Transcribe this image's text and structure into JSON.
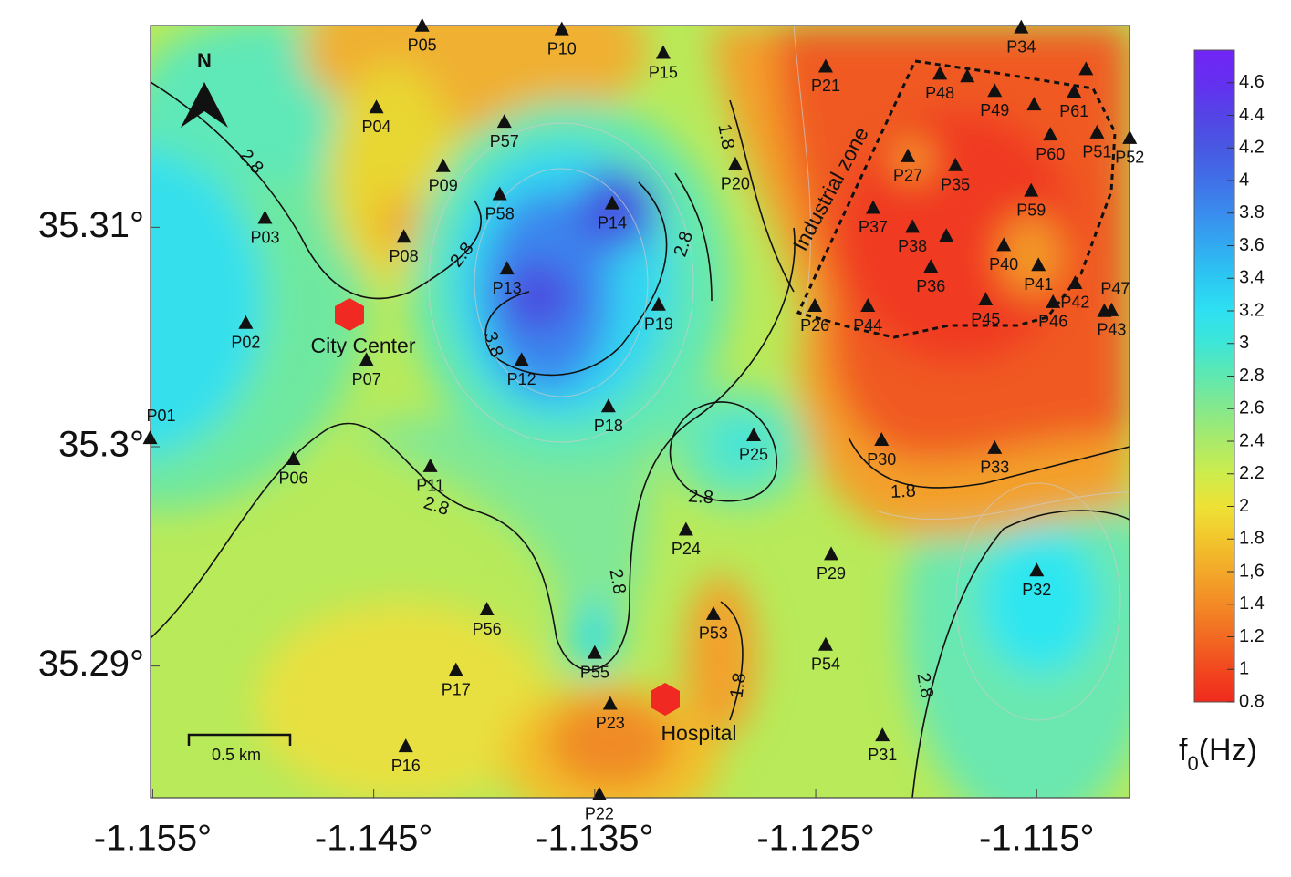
{
  "map": {
    "xlim": [
      -1.1551,
      -1.1108
    ],
    "ylim": [
      35.284,
      35.3192
    ],
    "xticks": [
      {
        "value": -1.155,
        "label": "-1.155°"
      },
      {
        "value": -1.145,
        "label": "-1.145°"
      },
      {
        "value": -1.135,
        "label": "-1.135°"
      },
      {
        "value": -1.125,
        "label": "-1.125°"
      },
      {
        "value": -1.115,
        "label": "-1.115°"
      }
    ],
    "yticks": [
      {
        "value": 35.31,
        "label": "35.31°"
      },
      {
        "value": 35.3,
        "label": "35.3°"
      },
      {
        "value": 35.29,
        "label": "35.29°"
      }
    ],
    "stations": [
      {
        "label": "P01",
        "lon": -1.15512,
        "lat": 35.30037
      },
      {
        "label": "P02",
        "lon": -1.15079,
        "lat": 35.30562
      },
      {
        "label": "P03",
        "lon": -1.14992,
        "lat": 35.31041
      },
      {
        "label": "P04",
        "lon": -1.14488,
        "lat": 35.31545
      },
      {
        "label": "P05",
        "lon": -1.14281,
        "lat": 35.31917
      },
      {
        "label": "P06",
        "lon": -1.14864,
        "lat": 35.29942
      },
      {
        "label": "P07",
        "lon": -1.14533,
        "lat": 35.30393
      },
      {
        "label": "P08",
        "lon": -1.14364,
        "lat": 35.30955
      },
      {
        "label": "P09",
        "lon": -1.14186,
        "lat": 35.31277
      },
      {
        "label": "P10",
        "lon": -1.13649,
        "lat": 35.31901
      },
      {
        "label": "P11",
        "lon": -1.14244,
        "lat": 35.29909
      },
      {
        "label": "P12",
        "lon": -1.13831,
        "lat": 35.30393
      },
      {
        "label": "P13",
        "lon": -1.13897,
        "lat": 35.3081
      },
      {
        "label": "P14",
        "lon": -1.13421,
        "lat": 35.31107
      },
      {
        "label": "P15",
        "lon": -1.1319,
        "lat": 35.31793
      },
      {
        "label": "P16",
        "lon": -1.14355,
        "lat": 35.28632
      },
      {
        "label": "P17",
        "lon": -1.14128,
        "lat": 35.28979
      },
      {
        "label": "P18",
        "lon": -1.13438,
        "lat": 35.30182
      },
      {
        "label": "P19",
        "lon": -1.13211,
        "lat": 35.30645
      },
      {
        "label": "P20",
        "lon": -1.12864,
        "lat": 35.31285
      },
      {
        "label": "P21",
        "lon": -1.12455,
        "lat": 35.31731
      },
      {
        "label": "P22",
        "lon": -1.13479,
        "lat": 35.28413
      },
      {
        "label": "P23",
        "lon": -1.1343,
        "lat": 35.28826
      },
      {
        "label": "P24",
        "lon": -1.13087,
        "lat": 35.2962
      },
      {
        "label": "P25",
        "lon": -1.12781,
        "lat": 35.3005
      },
      {
        "label": "P26",
        "lon": -1.12504,
        "lat": 35.3064
      },
      {
        "label": "P27",
        "lon": -1.12083,
        "lat": 35.31322
      },
      {
        "label": "P29",
        "lon": -1.1243,
        "lat": 35.29508
      },
      {
        "label": "P30",
        "lon": -1.12202,
        "lat": 35.30029
      },
      {
        "label": "P31",
        "lon": -1.12198,
        "lat": 35.28682
      },
      {
        "label": "P32",
        "lon": -1.115,
        "lat": 35.29434
      },
      {
        "label": "P33",
        "lon": -1.1169,
        "lat": 35.29992
      },
      {
        "label": "P34",
        "lon": -1.1157,
        "lat": 35.31909
      },
      {
        "label": "P35",
        "lon": -1.11868,
        "lat": 35.31281
      },
      {
        "label": "P36",
        "lon": -1.11979,
        "lat": 35.30818
      },
      {
        "label": "P37",
        "lon": -1.1224,
        "lat": 35.31087
      },
      {
        "label": "P38",
        "lon": -1.12062,
        "lat": 35.31
      },
      {
        "label": null,
        "lon": -1.11909,
        "lat": 35.30959
      },
      {
        "label": "P40",
        "lon": -1.11649,
        "lat": 35.30917
      },
      {
        "label": "P41",
        "lon": -1.11492,
        "lat": 35.30826
      },
      {
        "label": "P42",
        "lon": -1.11326,
        "lat": 35.30744
      },
      {
        "label": "P43",
        "lon": -1.11161,
        "lat": 35.3062
      },
      {
        "label": "P44",
        "lon": -1.12264,
        "lat": 35.3064
      },
      {
        "label": "P45",
        "lon": -1.11731,
        "lat": 35.30669
      },
      {
        "label": "P46",
        "lon": -1.11426,
        "lat": 35.30657
      },
      {
        "label": "P47",
        "lon": -1.11194,
        "lat": 35.30616
      },
      {
        "label": null,
        "lon": -1.11814,
        "lat": 35.31686
      },
      {
        "label": "P48",
        "lon": -1.11938,
        "lat": 35.31698
      },
      {
        "label": "P49",
        "lon": -1.1169,
        "lat": 35.3162
      },
      {
        "label": null,
        "lon": -1.11512,
        "lat": 35.31558
      },
      {
        "label": null,
        "lon": -1.11277,
        "lat": 35.31719
      },
      {
        "label": "P51",
        "lon": -1.11227,
        "lat": 35.3143
      },
      {
        "label": "P52",
        "lon": -1.11079,
        "lat": 35.31405
      },
      {
        "label": "P53",
        "lon": -1.12963,
        "lat": 35.29236
      },
      {
        "label": "P54",
        "lon": -1.12455,
        "lat": 35.29095
      },
      {
        "label": "P55",
        "lon": -1.135,
        "lat": 35.29058
      },
      {
        "label": "P56",
        "lon": -1.13988,
        "lat": 35.29256
      },
      {
        "label": "P57",
        "lon": -1.13909,
        "lat": 35.31479
      },
      {
        "label": "P58",
        "lon": -1.1393,
        "lat": 35.31149
      },
      {
        "label": "P59",
        "lon": -1.11525,
        "lat": 35.31165
      },
      {
        "label": "P60",
        "lon": -1.11438,
        "lat": 35.31421
      },
      {
        "label": "P61",
        "lon": -1.11331,
        "lat": 35.31616
      }
    ],
    "contour_labels": [
      2.8,
      2.8,
      3.8,
      2.8,
      1.8,
      2.8,
      2.8,
      2.8,
      1.8,
      1.8,
      2.8
    ],
    "landmarks": [
      "City Center",
      "Hospital"
    ],
    "zone_label": "Industrial zone",
    "north": "N",
    "scale_bar": "0.5 km",
    "colorbar": {
      "title": "f",
      "title_sub": "0",
      "title_unit": "(Hz)",
      "lim": [
        0.8,
        4.8
      ],
      "ticks": [
        4.6,
        4.4,
        4.2,
        4,
        3.8,
        3.6,
        3.4,
        3.2,
        3,
        2.8,
        2.6,
        2.4,
        2.2,
        2,
        1.8,
        {
          "value": 1.6,
          "label": "1,6"
        },
        1.4,
        1.2,
        1,
        0.8
      ],
      "colors": [
        "#f02a1e",
        "#f2481f",
        "#f26a22",
        "#f38a26",
        "#f3a82a",
        "#f2c62c",
        "#eee236",
        "#cdec4c",
        "#a9ea6a",
        "#86e88c",
        "#5fe8b0",
        "#3ee6d6",
        "#2ee0f2",
        "#2cc8f2",
        "#32aaf0",
        "#3a8cee",
        "#4070e8",
        "#4858e2",
        "#5444e6",
        "#6430f0",
        "#7224f6"
      ]
    }
  }
}
